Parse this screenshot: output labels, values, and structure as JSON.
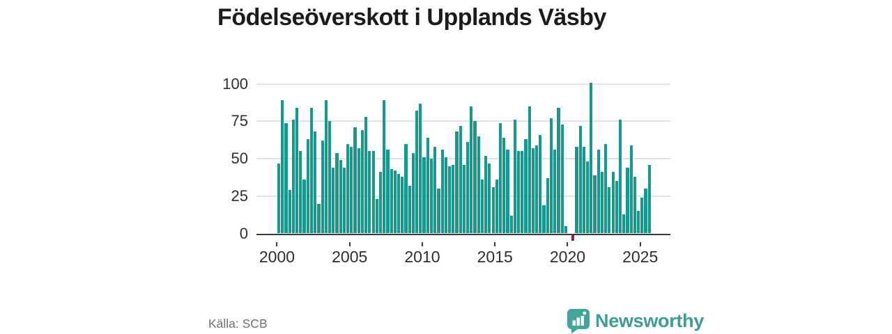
{
  "page": {
    "title": "Födelseöverskott i Upplands Väsby"
  },
  "footer": {
    "source": "Källa: SCB",
    "brand_name": "Newsworthy"
  },
  "colors": {
    "bar": "#13998d",
    "bar_negative": "#a51c3c",
    "grid": "#e3e3e3",
    "axis": "#3b3b3b",
    "brand": "#3e9d95",
    "title_text": "#1b1b1b",
    "tick_text": "#2e2e2e",
    "source_text": "#6c7077"
  },
  "chart_data": {
    "type": "bar",
    "title": "Födelseöverskott i Upplands Väsby",
    "x_unit": "quarter",
    "x_range": [
      "2000-Q1",
      "2025-Q3"
    ],
    "x_tick_labels": [
      "2000",
      "2005",
      "2010",
      "2015",
      "2020",
      "2025"
    ],
    "y_ticks": [
      0,
      25,
      50,
      75,
      100
    ],
    "ylim": [
      -6,
      103
    ],
    "grid": "horizontal",
    "legend": "none",
    "series": [
      {
        "name": "Födelseöverskott",
        "start_year": 2000,
        "start_quarter": 1,
        "values": [
          47,
          89,
          74,
          29,
          76,
          84,
          55,
          36,
          63,
          84,
          68,
          20,
          62,
          89,
          75,
          44,
          54,
          49,
          44,
          60,
          58,
          71,
          57,
          69,
          78,
          55,
          55,
          23,
          41,
          89,
          56,
          43,
          42,
          40,
          38,
          60,
          32,
          54,
          82,
          87,
          51,
          64,
          50,
          58,
          30,
          56,
          51,
          45,
          46,
          68,
          72,
          46,
          61,
          85,
          75,
          65,
          36,
          52,
          47,
          31,
          36,
          74,
          64,
          56,
          12,
          76,
          55,
          55,
          63,
          85,
          57,
          59,
          66,
          19,
          37,
          77,
          56,
          84,
          73,
          5,
          0,
          -4,
          58,
          72,
          58,
          48,
          101,
          39,
          56,
          41,
          60,
          31,
          41,
          35,
          76,
          13,
          44,
          59,
          38,
          15,
          24,
          30,
          46
        ]
      }
    ],
    "annotations": [
      "negative quarter (2020) drawn in red below the zero axis"
    ]
  }
}
